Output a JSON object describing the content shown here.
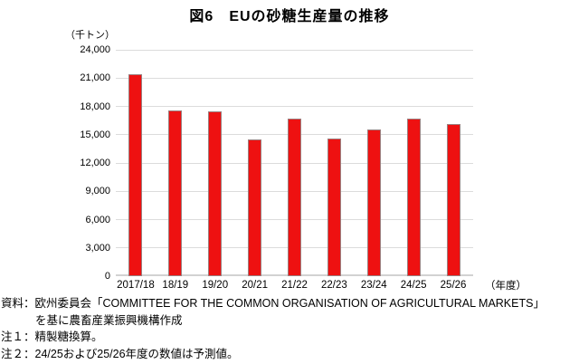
{
  "title": "図6　EUの砂糖生産量の推移",
  "chart_data": {
    "type": "bar",
    "title": "図6　EUの砂糖生産量の推移",
    "unit_label": "（千トン）",
    "x_axis_unit_label": "（年度）",
    "categories": [
      "2017/18",
      "18/19",
      "19/20",
      "20/21",
      "21/22",
      "22/23",
      "23/24",
      "24/25",
      "25/26"
    ],
    "values": [
      21400,
      17600,
      17500,
      14500,
      16700,
      14600,
      15600,
      16700,
      16100
    ],
    "ylim": [
      0,
      24000
    ],
    "ytick_step": 3000,
    "yticks": [
      0,
      3000,
      6000,
      9000,
      12000,
      15000,
      18000,
      21000,
      24000
    ],
    "ytick_labels": [
      "0",
      "3,000",
      "6,000",
      "9,000",
      "12,000",
      "15,000",
      "18,000",
      "21,000",
      "24,000"
    ],
    "grid": true,
    "legend": "none",
    "bar_color": "#ee1111",
    "bar_border_color": "#9b7f7f",
    "gridline_color": "#dcdcdc"
  },
  "footnotes": {
    "source_line1": "資料：欧州委員会「COMMITTEE FOR THE COMMON ORGANISATION OF AGRICULTURAL MARKETS」",
    "source_line2": "を基に農畜産業振興機構作成",
    "note1": "注１：精製糖換算。",
    "note2": "注２：24/25および25/26年度の数値は予測値。"
  }
}
